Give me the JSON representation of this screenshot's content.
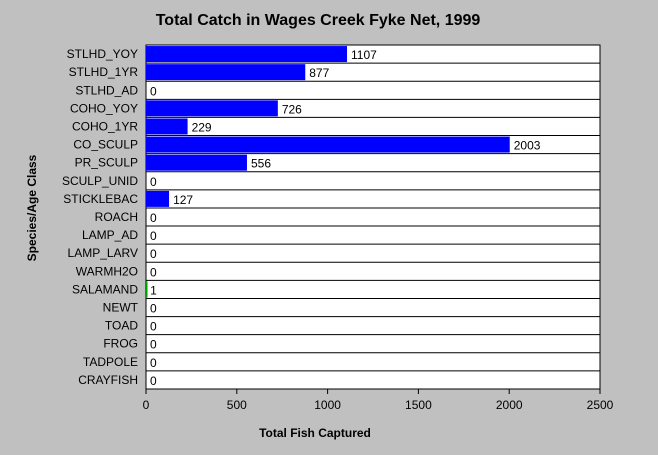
{
  "chart_data": {
    "type": "bar",
    "orientation": "horizontal",
    "title": "Total Catch in Wages Creek Fyke Net, 1999",
    "xlabel": "Total Fish Captured",
    "ylabel": "Species/Age Class",
    "categories": [
      "STLHD_YOY",
      "STLHD_1YR",
      "STLHD_AD",
      "COHO_YOY",
      "COHO_1YR",
      "CO_SCULP",
      "PR_SCULP",
      "SCULP_UNID",
      "STICKLEBAC",
      "ROACH",
      "LAMP_AD",
      "LAMP_LARV",
      "WARMH2O",
      "SALAMAND",
      "NEWT",
      "TOAD",
      "FROG",
      "TADPOLE",
      "CRAYFISH"
    ],
    "values": [
      1107,
      877,
      0,
      726,
      229,
      2003,
      556,
      0,
      127,
      0,
      0,
      0,
      0,
      1,
      0,
      0,
      0,
      0,
      0
    ],
    "value_labels": [
      "1107",
      "877",
      "0",
      "726",
      "229",
      "2003",
      "556",
      "0",
      "127",
      "0",
      "0",
      "0",
      "0",
      "1",
      "0",
      "0",
      "0",
      "0",
      "0"
    ],
    "bar_colors": [
      "#0000ff",
      "#0000ff",
      "#0000ff",
      "#0000ff",
      "#0000ff",
      "#0000ff",
      "#0000ff",
      "#0000ff",
      "#0000ff",
      "#0000ff",
      "#0000ff",
      "#0000ff",
      "#0000ff",
      "#00a000",
      "#0000ff",
      "#0000ff",
      "#0000ff",
      "#0000ff",
      "#0000ff"
    ],
    "xlim": [
      0,
      2500
    ],
    "xticks": [
      0,
      500,
      1000,
      1500,
      2000,
      2500
    ],
    "xtick_labels": [
      "0",
      "500",
      "1000",
      "1500",
      "2000",
      "2500"
    ],
    "grid": "horizontal lines between categories",
    "legend": "none",
    "plot_background": "#ffffff",
    "page_background": "#c0c0c0"
  }
}
